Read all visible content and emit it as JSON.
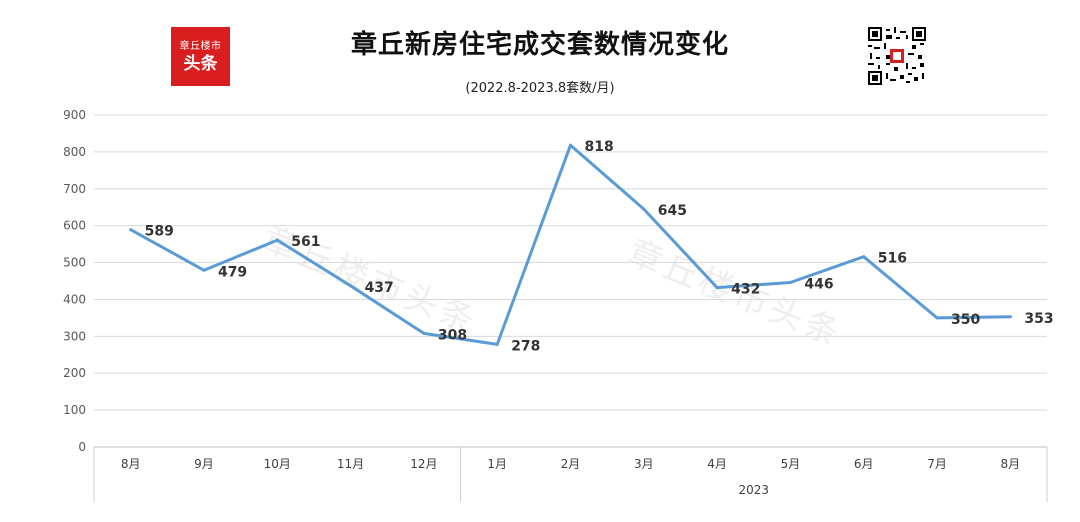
{
  "header": {
    "logo_line1": "章丘楼市",
    "logo_line2": "头条",
    "title": "章丘新房住宅成交套数情况变化",
    "subtitle": "(2022.8-2023.8套数/月)",
    "watermark": "章丘楼市头条",
    "qr_icon": "qr-code-icon"
  },
  "colors": {
    "line": "#5b9bd5",
    "logo_bg": "#d81e1e",
    "grid": "#d9d9d9"
  },
  "chart_data": {
    "type": "line",
    "categories": [
      "8月",
      "9月",
      "10月",
      "11月",
      "12月",
      "1月",
      "2月",
      "3月",
      "4月",
      "5月",
      "6月",
      "7月",
      "8月"
    ],
    "series": [
      {
        "values": [
          589,
          479,
          561,
          437,
          308,
          278,
          818,
          645,
          432,
          446,
          516,
          350,
          353
        ]
      }
    ],
    "year_group_label": "2023",
    "ylim": [
      0,
      900
    ],
    "yticks": [
      0,
      100,
      200,
      300,
      400,
      500,
      600,
      700,
      800,
      900
    ],
    "grid": true,
    "legend": "none",
    "data_labels": true
  }
}
